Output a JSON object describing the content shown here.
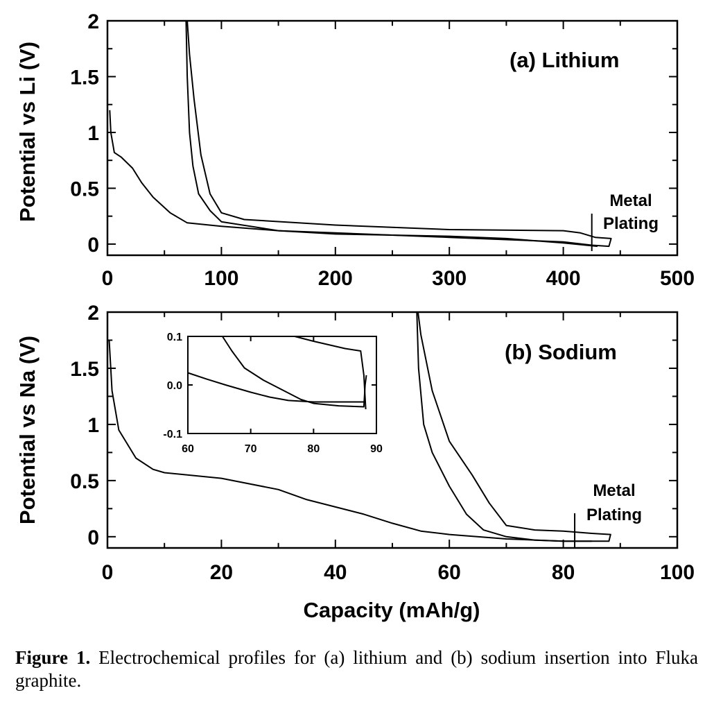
{
  "chart_data": [
    {
      "type": "line",
      "title": "(a) Lithium",
      "xlabel": "",
      "ylabel": "Potential vs Li (V)",
      "xlim": [
        0,
        500
      ],
      "ylim": [
        -0.1,
        2
      ],
      "x_ticks": [
        0,
        100,
        200,
        300,
        400,
        500
      ],
      "y_ticks": [
        0,
        0.5,
        1,
        1.5,
        2
      ],
      "x_tick_labels": [
        "0",
        "100",
        "200",
        "300",
        "400",
        "500"
      ],
      "y_tick_labels": [
        "0",
        "0.5",
        "1",
        "1.5",
        "2"
      ],
      "grid": false,
      "annotation": {
        "text_line1": "Metal",
        "text_line2": "Plating",
        "x": 425
      },
      "series": [
        {
          "points": [
            [
              2,
              1.2
            ],
            [
              3,
              1.0
            ],
            [
              6,
              0.82
            ],
            [
              12,
              0.78
            ],
            [
              22,
              0.68
            ],
            [
              30,
              0.55
            ],
            [
              40,
              0.42
            ],
            [
              55,
              0.28
            ],
            [
              70,
              0.19
            ],
            [
              100,
              0.16
            ],
            [
              150,
              0.12
            ],
            [
              200,
              0.1
            ],
            [
              250,
              0.08
            ],
            [
              300,
              0.06
            ],
            [
              350,
              0.04
            ],
            [
              400,
              0.02
            ],
            [
              425,
              -0.01
            ],
            [
              440,
              -0.02
            ],
            [
              442,
              0.05
            ],
            [
              428,
              0.06
            ],
            [
              415,
              0.1
            ],
            [
              400,
              0.12
            ],
            [
              300,
              0.13
            ],
            [
              200,
              0.17
            ],
            [
              120,
              0.22
            ],
            [
              100,
              0.28
            ],
            [
              90,
              0.45
            ],
            [
              82,
              0.8
            ],
            [
              76,
              1.3
            ],
            [
              72,
              1.7
            ],
            [
              70,
              2.0
            ]
          ]
        },
        {
          "points": [
            [
              69,
              2.0
            ],
            [
              70,
              1.5
            ],
            [
              72,
              1.0
            ],
            [
              75,
              0.7
            ],
            [
              80,
              0.45
            ],
            [
              90,
              0.3
            ],
            [
              100,
              0.2
            ],
            [
              150,
              0.12
            ],
            [
              200,
              0.09
            ],
            [
              300,
              0.07
            ],
            [
              350,
              0.05
            ],
            [
              400,
              0.01
            ],
            [
              420,
              -0.01
            ],
            [
              430,
              -0.02
            ]
          ]
        }
      ]
    },
    {
      "type": "line",
      "title": "(b) Sodium",
      "xlabel": "Capacity (mAh/g)",
      "ylabel": "Potential vs Na (V)",
      "xlim": [
        0,
        100
      ],
      "ylim": [
        -0.1,
        2
      ],
      "x_ticks": [
        0,
        20,
        40,
        60,
        80,
        100
      ],
      "y_ticks": [
        0,
        0.5,
        1,
        1.5,
        2
      ],
      "x_tick_labels": [
        "0",
        "20",
        "40",
        "60",
        "80",
        "100"
      ],
      "y_tick_labels": [
        "0",
        "0.5",
        "1",
        "1.5",
        "2"
      ],
      "grid": false,
      "annotation": {
        "text_line1": "Metal",
        "text_line2": "Plating",
        "x": 82
      },
      "series": [
        {
          "points": [
            [
              0.3,
              1.75
            ],
            [
              0.8,
              1.3
            ],
            [
              2,
              0.95
            ],
            [
              5,
              0.7
            ],
            [
              8,
              0.6
            ],
            [
              10,
              0.57
            ],
            [
              20,
              0.52
            ],
            [
              30,
              0.42
            ],
            [
              35,
              0.33
            ],
            [
              45,
              0.2
            ],
            [
              50,
              0.12
            ],
            [
              55,
              0.05
            ],
            [
              60,
              0.02
            ],
            [
              70,
              -0.02
            ],
            [
              80,
              -0.04
            ],
            [
              86,
              -0.04
            ],
            [
              88,
              -0.04
            ],
            [
              88.3,
              0.02
            ],
            [
              85,
              0.03
            ],
            [
              80,
              0.05
            ],
            [
              75,
              0.06
            ],
            [
              70,
              0.1
            ],
            [
              67,
              0.3
            ],
            [
              64,
              0.55
            ],
            [
              60,
              0.85
            ],
            [
              57,
              1.3
            ],
            [
              55,
              1.8
            ],
            [
              54.5,
              2.0
            ]
          ]
        },
        {
          "points": [
            [
              54.3,
              2.0
            ],
            [
              54.6,
              1.5
            ],
            [
              55.5,
              1.0
            ],
            [
              57,
              0.75
            ],
            [
              60,
              0.45
            ],
            [
              63,
              0.2
            ],
            [
              66,
              0.06
            ],
            [
              70,
              0.0
            ],
            [
              75,
              -0.03
            ],
            [
              80,
              -0.04
            ],
            [
              85,
              -0.04
            ]
          ]
        }
      ]
    },
    {
      "type": "line",
      "title": "",
      "xlabel": "",
      "ylabel": "",
      "xlim": [
        60,
        90
      ],
      "ylim": [
        -0.1,
        0.1
      ],
      "x_ticks": [
        60,
        70,
        80,
        90
      ],
      "y_ticks": [
        -0.1,
        0.0,
        0.1
      ],
      "x_tick_labels": [
        "60",
        "70",
        "80",
        "90"
      ],
      "y_tick_labels": [
        "-0.1",
        "0.0",
        "0.1"
      ],
      "grid": false,
      "series": [
        {
          "points": [
            [
              60,
              0.025
            ],
            [
              63,
              0.012
            ],
            [
              66,
              0.0
            ],
            [
              70,
              -0.015
            ],
            [
              73,
              -0.025
            ],
            [
              76,
              -0.032
            ],
            [
              80,
              -0.035
            ],
            [
              85,
              -0.035
            ],
            [
              88,
              -0.035
            ]
          ]
        },
        {
          "points": [
            [
              65.5,
              0.1
            ],
            [
              67,
              0.07
            ],
            [
              69,
              0.035
            ],
            [
              72,
              0.01
            ],
            [
              75,
              -0.01
            ],
            [
              78,
              -0.03
            ],
            [
              80,
              -0.038
            ],
            [
              84,
              -0.043
            ],
            [
              88,
              -0.045
            ],
            [
              88.2,
              0.0
            ],
            [
              88.4,
              0.02
            ]
          ]
        },
        {
          "points": [
            [
              77,
              0.1
            ],
            [
              80,
              0.09
            ],
            [
              85,
              0.075
            ],
            [
              87.5,
              0.07
            ],
            [
              88,
              0.02
            ],
            [
              88.3,
              -0.05
            ]
          ]
        }
      ]
    }
  ],
  "caption": {
    "label": "Figure 1.",
    "text": " Electrochemical profiles for (a) lithium and (b) sodium insertion into Fluka graphite."
  }
}
